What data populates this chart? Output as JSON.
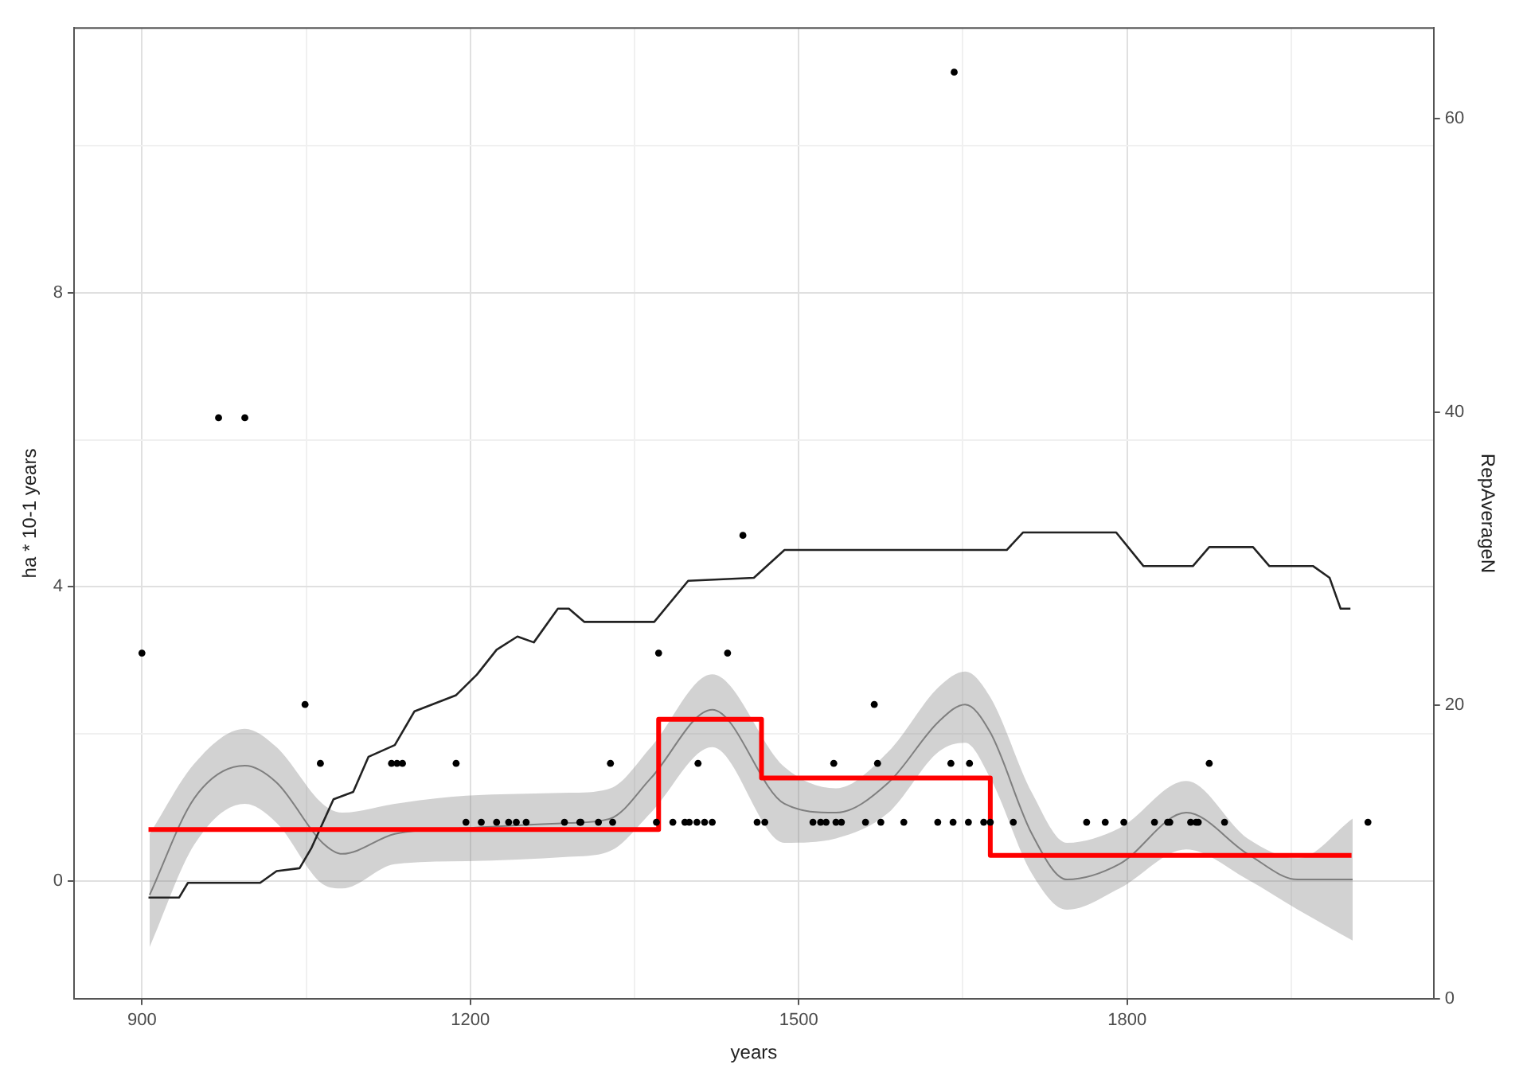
{
  "chart_data": {
    "type": "line",
    "xlabel": "years",
    "ylabel": "ha * 10-1 years",
    "y2label": "RepAverageN",
    "xlim": [
      838,
      2080
    ],
    "ylim": [
      -1.6,
      11.6
    ],
    "y2lim": [
      0,
      66.2
    ],
    "xticks": [
      900,
      {
        "value": 1050,
        "label": null
      },
      1200,
      {
        "value": 1350,
        "label": null
      },
      1500,
      {
        "value": 1650,
        "label": null
      },
      1800,
      {
        "value": 1950,
        "label": null
      }
    ],
    "yticks": [
      0,
      {
        "value": 2,
        "label": null
      },
      4,
      {
        "value": 6,
        "label": null
      },
      8,
      {
        "value": 10,
        "label": null
      }
    ],
    "y2ticks": [
      0,
      20,
      40,
      60
    ],
    "grid": true,
    "legend": false,
    "series": [
      {
        "type": "scatter",
        "marker": "circle",
        "color": "#000000",
        "x": [
          1642,
          970,
          994,
          1449,
          900,
          1372,
          1435,
          1049,
          1569,
          1063,
          1128,
          1133,
          1138,
          1187,
          1328,
          1408,
          1532,
          1572,
          1639,
          1656,
          1875,
          1196,
          1210,
          1224,
          1235,
          1242,
          1251,
          1286,
          1300,
          1301,
          1317,
          1330,
          1370,
          1385,
          1396,
          1400,
          1407,
          1414,
          1421,
          1462,
          1469,
          1513,
          1520,
          1525,
          1534,
          1539,
          1561,
          1575,
          1596,
          1627,
          1641,
          1655,
          1669,
          1675,
          1696,
          1763,
          1780,
          1797,
          1825,
          1837,
          1839,
          1858,
          1863,
          1865,
          1889,
          2020
        ],
        "values": [
          11.0,
          6.3,
          6.3,
          4.7,
          3.1,
          3.1,
          3.1,
          2.4,
          2.4,
          1.6,
          1.6,
          1.6,
          1.6,
          1.6,
          1.6,
          1.6,
          1.6,
          1.6,
          1.6,
          1.6,
          1.6,
          0.8,
          0.8,
          0.8,
          0.8,
          0.8,
          0.8,
          0.8,
          0.8,
          0.8,
          0.8,
          0.8,
          0.8,
          0.8,
          0.8,
          0.8,
          0.8,
          0.8,
          0.8,
          0.8,
          0.8,
          0.8,
          0.8,
          0.8,
          0.8,
          0.8,
          0.8,
          0.8,
          0.8,
          0.8,
          0.8,
          0.8,
          0.8,
          0.8,
          0.8,
          0.8,
          0.8,
          0.8,
          0.8,
          0.8,
          0.8,
          0.8,
          0.8,
          0.8,
          0.8,
          0.8
        ]
      },
      {
        "axis": "y2",
        "color": "#222222",
        "x": [
          906,
          934,
          942,
          1008,
          1023,
          1044,
          1055,
          1075,
          1093,
          1107,
          1131,
          1149,
          1187,
          1206,
          1224,
          1243,
          1258,
          1280,
          1290,
          1304,
          1368,
          1399,
          1459,
          1487,
          1690,
          1705,
          1790,
          1815,
          1860,
          1875,
          1915,
          1930,
          1970,
          1985,
          1995,
          2004
        ],
        "values": [
          6.9,
          6.9,
          7.9,
          7.9,
          8.7,
          8.9,
          10.3,
          13.6,
          14.1,
          16.5,
          17.3,
          19.6,
          20.7,
          22.1,
          23.8,
          24.7,
          24.3,
          26.6,
          26.6,
          25.7,
          25.7,
          28.5,
          28.7,
          30.6,
          30.6,
          31.8,
          31.8,
          29.5,
          29.5,
          30.8,
          30.8,
          29.5,
          29.5,
          28.7,
          26.6,
          26.6
        ]
      },
      {
        "color": "#7f7f7f",
        "x": [
          907,
          948,
          994,
          1023,
          1065,
          1083,
          1131,
          1196,
          1290,
          1328,
          1365,
          1421,
          1487,
          1534,
          1582,
          1628,
          1652,
          1675,
          1713,
          1745,
          1793,
          1854,
          1910,
          1956,
          2006
        ],
        "values": [
          -0.19,
          1.13,
          1.57,
          1.34,
          0.52,
          0.37,
          0.64,
          0.72,
          0.79,
          0.85,
          1.4,
          2.33,
          1.05,
          0.93,
          1.34,
          2.17,
          2.4,
          2.02,
          0.64,
          0.02,
          0.23,
          0.93,
          0.37,
          0.02,
          0.02
        ],
        "lower": [
          -0.9,
          0.5,
          1.05,
          0.79,
          -0.04,
          -0.1,
          0.23,
          0.27,
          0.33,
          0.41,
          0.93,
          1.82,
          0.52,
          0.58,
          0.93,
          1.76,
          1.88,
          1.4,
          0.1,
          -0.39,
          -0.1,
          0.43,
          0.02,
          -0.39,
          -0.81
        ],
        "upper": [
          0.64,
          1.6,
          2.07,
          1.82,
          1.05,
          0.93,
          1.05,
          1.16,
          1.2,
          1.26,
          1.82,
          2.81,
          1.55,
          1.26,
          1.76,
          2.64,
          2.85,
          2.5,
          1.2,
          0.52,
          0.72,
          1.36,
          0.58,
          0.31,
          0.85
        ]
      },
      {
        "type": "step",
        "color": "#ff0000",
        "x": [
          906,
          1372,
          1466,
          1675,
          2005
        ],
        "values": [
          0.7,
          2.2,
          1.4,
          0.35,
          0.35
        ]
      }
    ]
  }
}
